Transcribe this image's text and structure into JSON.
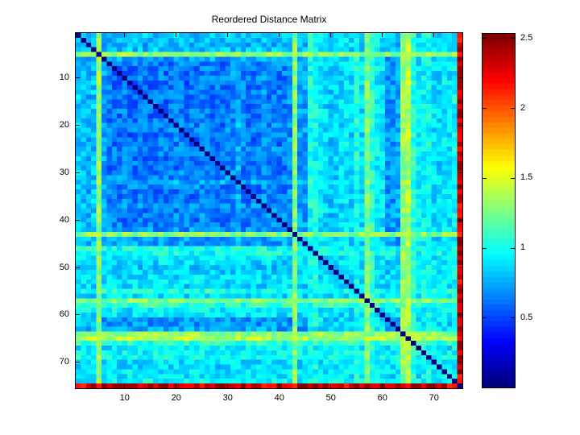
{
  "colors": {
    "background": "#ffffff",
    "axis": "#000000",
    "text": "#000000"
  },
  "chart_data": {
    "type": "heatmap",
    "title": "Reordered Distance Matrix",
    "n": 75,
    "x_ticks": [
      10,
      20,
      30,
      40,
      50,
      60,
      70
    ],
    "y_ticks": [
      10,
      20,
      30,
      40,
      50,
      60,
      70
    ],
    "colorbar_ticks": [
      {
        "value": 2.5,
        "label": "2.5"
      },
      {
        "value": 2,
        "label": "2"
      },
      {
        "value": 1.5,
        "label": "1.5"
      },
      {
        "value": 1,
        "label": "1"
      },
      {
        "value": 0.5,
        "label": "0.5"
      }
    ],
    "value_range": [
      0,
      2.53
    ],
    "colormap": "jet",
    "grid": false,
    "legend": "colorbar-right",
    "diagonal_value": 0,
    "distance_model": "d(i,j)=clamp(max(row_levels[i],row_levels[j])+noise,0,2.53); d(i,i)=0; matrix symmetric",
    "noise_amplitude": 0.15,
    "outlier_noise_amplitude": 0.3,
    "noise_seed": 1234567,
    "row_levels": [
      0.82,
      0.78,
      0.75,
      0.8,
      1.3,
      0.72,
      0.62,
      0.6,
      0.58,
      0.62,
      0.57,
      0.6,
      0.63,
      0.58,
      0.56,
      0.6,
      0.62,
      0.57,
      0.6,
      0.61,
      0.64,
      0.52,
      0.56,
      0.6,
      0.63,
      0.58,
      0.6,
      0.56,
      0.59,
      0.62,
      0.67,
      0.74,
      0.64,
      0.6,
      0.58,
      0.61,
      0.68,
      0.62,
      0.65,
      0.6,
      0.63,
      0.68,
      1.28,
      0.7,
      0.72,
      1.0,
      0.98,
      0.9,
      0.86,
      0.82,
      0.84,
      0.87,
      0.9,
      0.85,
      1.02,
      0.87,
      1.26,
      1.05,
      0.92,
      0.88,
      0.7,
      0.68,
      0.72,
      1.3,
      1.38,
      1.05,
      0.9,
      0.95,
      1.0,
      0.88,
      0.85,
      0.9,
      0.86,
      0.95,
      2.4
    ]
  }
}
